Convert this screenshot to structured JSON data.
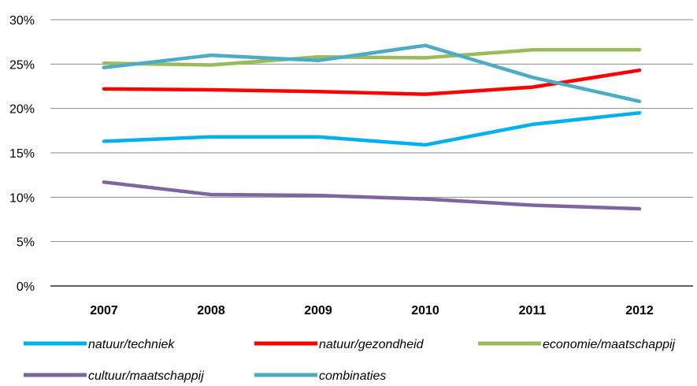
{
  "chart_data": {
    "type": "line",
    "title": "",
    "xlabel": "",
    "ylabel": "",
    "categories": [
      "2007",
      "2008",
      "2009",
      "2010",
      "2011",
      "2012"
    ],
    "ylim": [
      0,
      30
    ],
    "yticks": [
      "0%",
      "5%",
      "10%",
      "15%",
      "20%",
      "25%",
      "30%"
    ],
    "ytick_values": [
      0,
      5,
      10,
      15,
      20,
      25,
      30
    ],
    "grid": true,
    "legend_position": "bottom",
    "series": [
      {
        "name": "natuur/techniek",
        "color": "#00b0f0",
        "values": [
          16.3,
          16.8,
          16.8,
          15.9,
          18.2,
          19.5
        ]
      },
      {
        "name": "natuur/gezondheid",
        "color": "#ff0000",
        "values": [
          22.2,
          22.1,
          21.9,
          21.6,
          22.4,
          24.3
        ]
      },
      {
        "name": "economie/maatschappij",
        "color": "#9bbb59",
        "values": [
          25.1,
          24.9,
          25.8,
          25.7,
          26.6,
          26.6
        ]
      },
      {
        "name": "cultuur/maatschappij",
        "color": "#8064a2",
        "values": [
          11.7,
          10.3,
          10.2,
          9.8,
          9.1,
          8.7
        ]
      },
      {
        "name": "combinaties",
        "color": "#4bacc6",
        "values": [
          24.6,
          26.0,
          25.4,
          27.1,
          23.5,
          20.8
        ]
      }
    ]
  }
}
